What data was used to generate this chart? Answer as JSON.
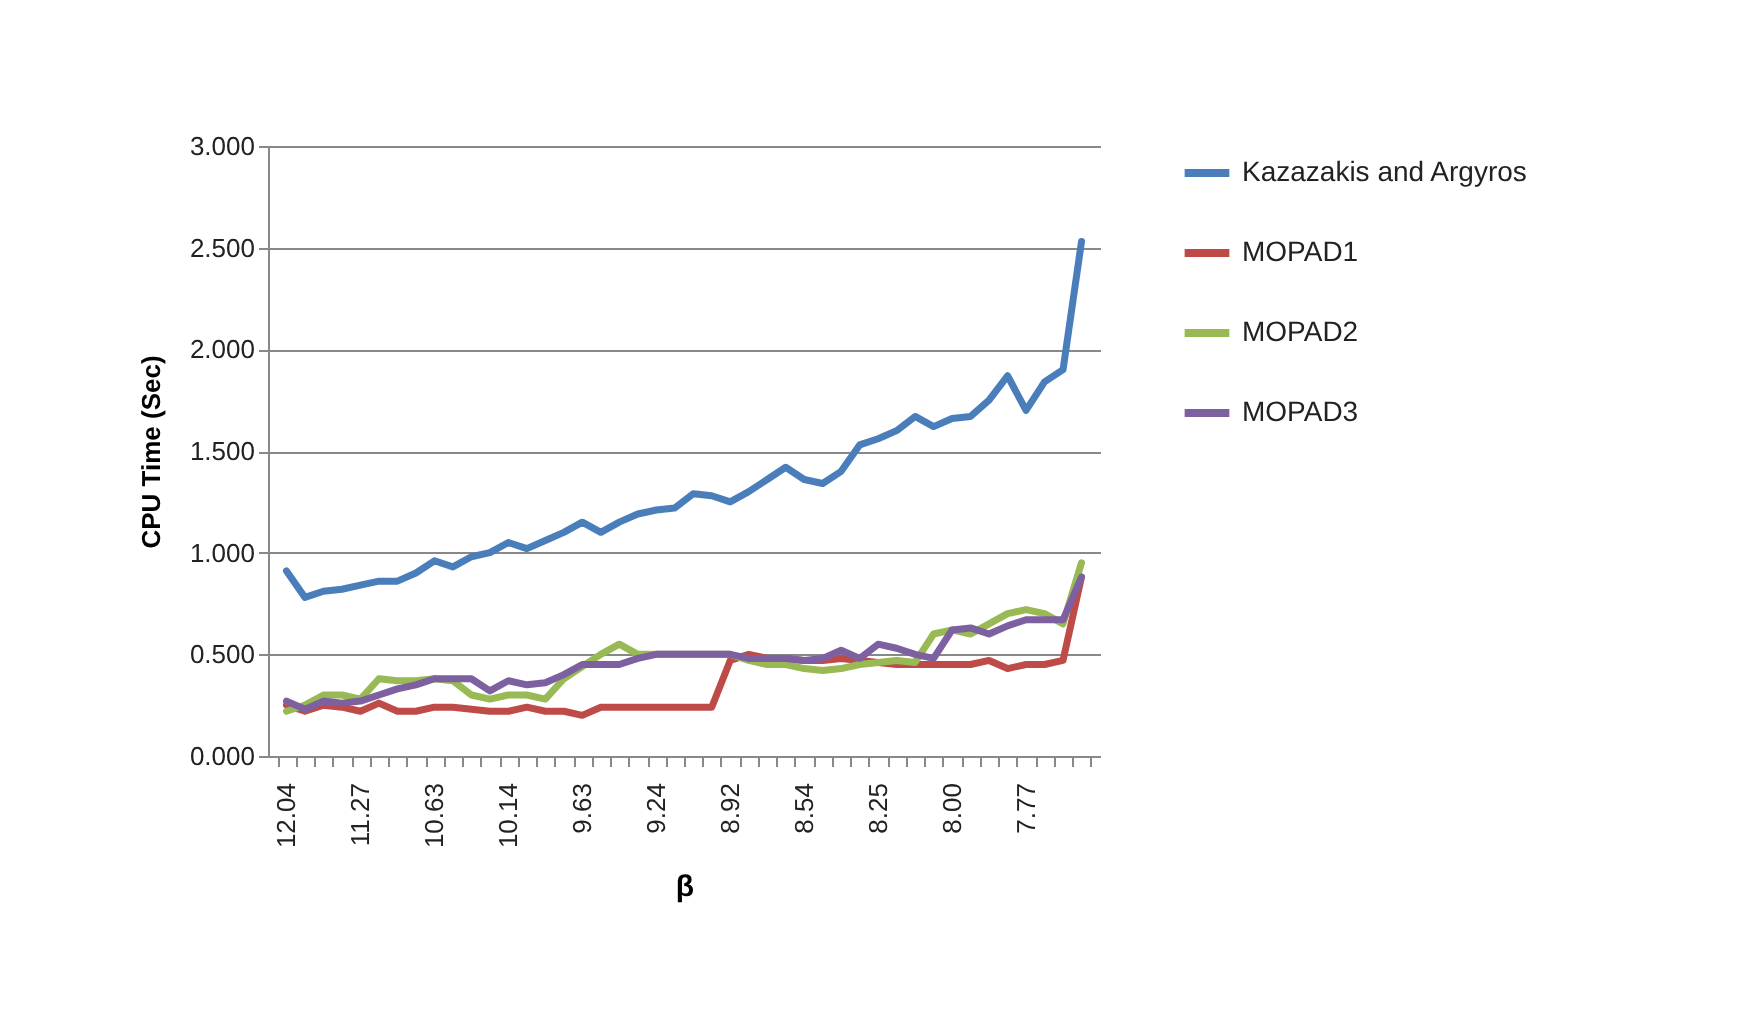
{
  "chart_data": {
    "type": "line",
    "xlabel": "β",
    "ylabel": "CPU Time (Sec)",
    "categories": [
      "12.04",
      null,
      null,
      null,
      "11.27",
      null,
      null,
      null,
      "10.63",
      null,
      null,
      null,
      "10.14",
      null,
      null,
      null,
      "9.63",
      null,
      null,
      null,
      "9.24",
      null,
      null,
      null,
      "8.92",
      null,
      null,
      null,
      "8.54",
      null,
      null,
      null,
      "8.25",
      null,
      null,
      null,
      "8.00",
      null,
      null,
      null,
      "7.77",
      null,
      null,
      null
    ],
    "series": [
      {
        "name": "Kazazakis and Argyros",
        "color": "#4a7ebb",
        "values": [
          0.91,
          0.78,
          0.81,
          0.82,
          0.84,
          0.86,
          0.86,
          0.9,
          0.96,
          0.93,
          0.98,
          1.0,
          1.05,
          1.02,
          1.06,
          1.1,
          1.15,
          1.1,
          1.15,
          1.19,
          1.21,
          1.22,
          1.29,
          1.28,
          1.25,
          1.3,
          1.36,
          1.42,
          1.36,
          1.34,
          1.4,
          1.53,
          1.56,
          1.6,
          1.67,
          1.62,
          1.66,
          1.67,
          1.75,
          1.87,
          1.7,
          1.84,
          1.9,
          2.53
        ]
      },
      {
        "name": "MOPAD1",
        "color": "#be4b48",
        "values": [
          0.25,
          0.22,
          0.25,
          0.24,
          0.22,
          0.26,
          0.22,
          0.22,
          0.24,
          0.24,
          0.23,
          0.22,
          0.22,
          0.24,
          0.22,
          0.22,
          0.2,
          0.24,
          0.24,
          0.24,
          0.24,
          0.24,
          0.24,
          0.24,
          0.47,
          0.5,
          0.48,
          0.48,
          0.47,
          0.47,
          0.48,
          0.47,
          0.46,
          0.45,
          0.45,
          0.45,
          0.45,
          0.45,
          0.47,
          0.43,
          0.45,
          0.45,
          0.47,
          0.88
        ]
      },
      {
        "name": "MOPAD2",
        "color": "#98b954",
        "values": [
          0.22,
          0.25,
          0.3,
          0.3,
          0.28,
          0.38,
          0.37,
          0.37,
          0.38,
          0.37,
          0.3,
          0.28,
          0.3,
          0.3,
          0.28,
          0.38,
          0.44,
          0.5,
          0.55,
          0.5,
          0.5,
          0.5,
          0.5,
          0.5,
          0.5,
          0.47,
          0.45,
          0.45,
          0.43,
          0.42,
          0.43,
          0.45,
          0.46,
          0.47,
          0.46,
          0.6,
          0.62,
          0.6,
          0.65,
          0.7,
          0.72,
          0.7,
          0.65,
          0.95
        ]
      },
      {
        "name": "MOPAD3",
        "color": "#7d60a0",
        "values": [
          0.27,
          0.23,
          0.27,
          0.26,
          0.27,
          0.3,
          0.33,
          0.35,
          0.38,
          0.38,
          0.38,
          0.32,
          0.37,
          0.35,
          0.36,
          0.4,
          0.45,
          0.45,
          0.45,
          0.48,
          0.5,
          0.5,
          0.5,
          0.5,
          0.5,
          0.48,
          0.48,
          0.48,
          0.47,
          0.48,
          0.52,
          0.48,
          0.55,
          0.53,
          0.5,
          0.48,
          0.62,
          0.63,
          0.6,
          0.64,
          0.67,
          0.67,
          0.67,
          0.88
        ]
      }
    ],
    "ylim": [
      0,
      3
    ],
    "yticks": [
      {
        "value": 0,
        "label": "0.000"
      },
      {
        "value": 0.5,
        "label": "0.500"
      },
      {
        "value": 1,
        "label": "1.000"
      },
      {
        "value": 1.5,
        "label": "1.500"
      },
      {
        "value": 2,
        "label": "2.000"
      },
      {
        "value": 2.5,
        "label": "2.500"
      },
      {
        "value": 3,
        "label": "3.000"
      }
    ],
    "grid": "y",
    "legend": "right",
    "line_style": "solid",
    "marker": "none"
  }
}
